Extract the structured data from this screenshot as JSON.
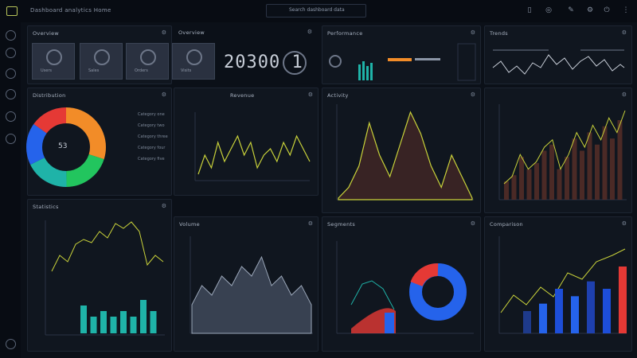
{
  "topbar": {
    "app_title": "Dashboard analytics   Home",
    "search_placeholder": "Search dashboard data"
  },
  "panels": {
    "kpi_title": "Overview",
    "kpi_labels": [
      "Users",
      "Sales",
      "Orders",
      "Visits"
    ],
    "big_number": "20300 1",
    "mini_title": "Performance",
    "line_top_title": "Trends",
    "donut_title": "Distribution",
    "donut_center": "53",
    "line_mid_title": "Revenue",
    "area_mid_title": "Activity",
    "area_right_title": "",
    "bars_left_title": "Statistics",
    "area_bottom_title": "Volume",
    "donut2_title": "Segments",
    "bars_right_title": "Comparison"
  },
  "legend_items": [
    "Category one",
    "Category two",
    "Category three",
    "Category four",
    "Category five"
  ],
  "colors": {
    "yellow": "#c9d23a",
    "teal": "#1fb3a8",
    "blue": "#2563eb",
    "red": "#e53935",
    "orange": "#f28c28"
  },
  "chart_data": [
    {
      "type": "pie",
      "values": [
        30,
        20,
        18,
        17,
        15
      ]
    },
    {
      "type": "line",
      "values": [
        3,
        6,
        4,
        8,
        5,
        7,
        9,
        6,
        8,
        4,
        6,
        7,
        5,
        8,
        6,
        9,
        7,
        5
      ]
    },
    {
      "type": "area",
      "values": [
        2,
        3,
        5,
        9,
        6,
        4,
        7,
        10,
        8,
        5,
        3,
        6,
        4,
        2
      ]
    },
    {
      "type": "bar",
      "values": [
        3,
        4,
        7,
        5,
        6,
        8,
        9,
        5,
        7,
        10,
        8,
        11,
        9,
        12,
        10,
        13
      ]
    },
    {
      "type": "bar",
      "values": [
        5,
        3,
        4,
        3,
        4,
        3,
        6,
        4
      ]
    },
    {
      "type": "area",
      "values": [
        4,
        6,
        5,
        7,
        6,
        8,
        7,
        9,
        6,
        7,
        5,
        6,
        4
      ]
    },
    {
      "type": "pie",
      "values": [
        68,
        22,
        10
      ]
    },
    {
      "type": "bar",
      "values": [
        3,
        4,
        6,
        5,
        7,
        6,
        9
      ]
    }
  ]
}
